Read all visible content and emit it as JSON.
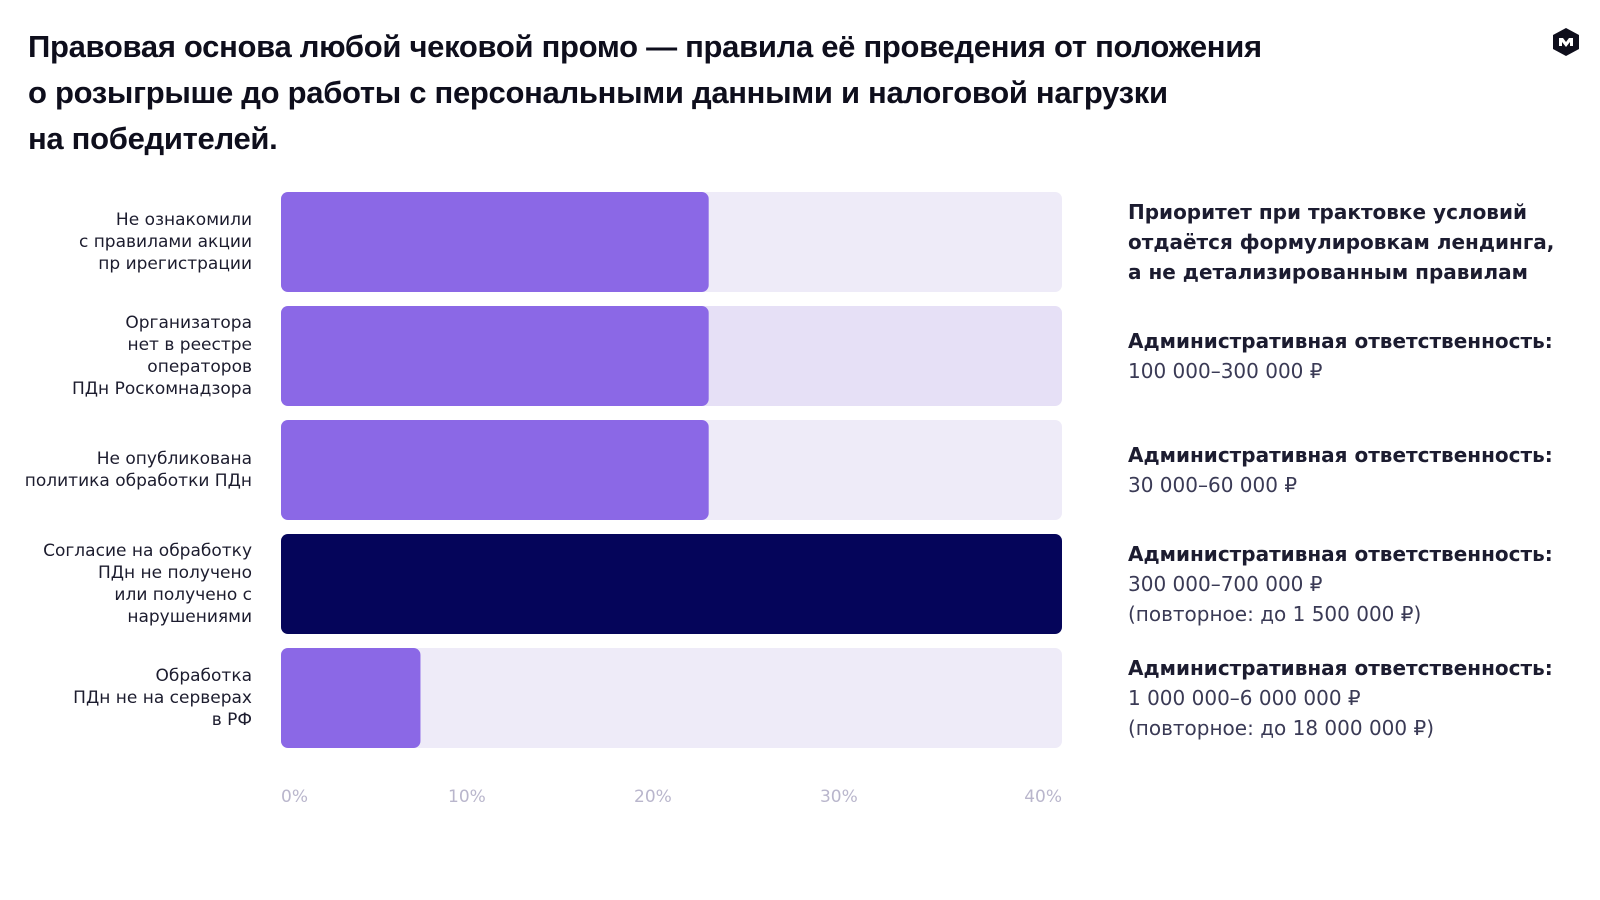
{
  "title_lines": [
    "Правовая основа любой чековой промо — правила её проведения от положения",
    "о розыгрыше до работы с персональными данными и налоговой нагрузки",
    "на победителей."
  ],
  "logo_icon": "brand-logo-icon",
  "colors": {
    "bar_primary": "#8b68e6",
    "bar_highlight": "#05055a",
    "track": "#eeebf8",
    "track_alt": "#e6e0f6",
    "tick": "#b9b6cc"
  },
  "chart_data": {
    "type": "bar",
    "orientation": "horizontal",
    "categories": [
      [
        "Не ознакомили",
        "с правилами акции",
        "пр ирегистрации"
      ],
      [
        "Организатора",
        "нет в реестре",
        "операторов",
        "ПДн Роскомнадзора"
      ],
      [
        "Не опубликована",
        "политика обработки ПДн"
      ],
      [
        "Согласие на обработку",
        "ПДн не получено",
        "или получено с",
        "нарушениями"
      ],
      [
        "Обработка",
        "ПДн не на серверах",
        "в РФ"
      ]
    ],
    "values": [
      23,
      23,
      23,
      42,
      7.5
    ],
    "highlight_index": 3,
    "x_ticks": [
      "0%",
      "10%",
      "20%",
      "30%",
      "40%"
    ],
    "xlim": [
      0,
      42
    ],
    "grid": false,
    "annotations": [
      {
        "head": [
          "Приоритет при трактовке условий",
          "отдаётся формулировкам лендинга,",
          "а не детализированным правилам"
        ],
        "sub": []
      },
      {
        "head": [
          "Административная ответственность:"
        ],
        "sub": [
          "100 000–300 000 ₽"
        ]
      },
      {
        "head": [
          "Административная ответственность:"
        ],
        "sub": [
          "30 000–60 000 ₽"
        ]
      },
      {
        "head": [
          "Административная ответственность:"
        ],
        "sub": [
          "300 000–700 000 ₽",
          "(повторное: до 1 500 000 ₽)"
        ]
      },
      {
        "head": [
          "Административная ответственность:"
        ],
        "sub": [
          "1 000 000–6 000 000 ₽",
          "(повторное: до 18 000 000 ₽)"
        ]
      }
    ]
  }
}
